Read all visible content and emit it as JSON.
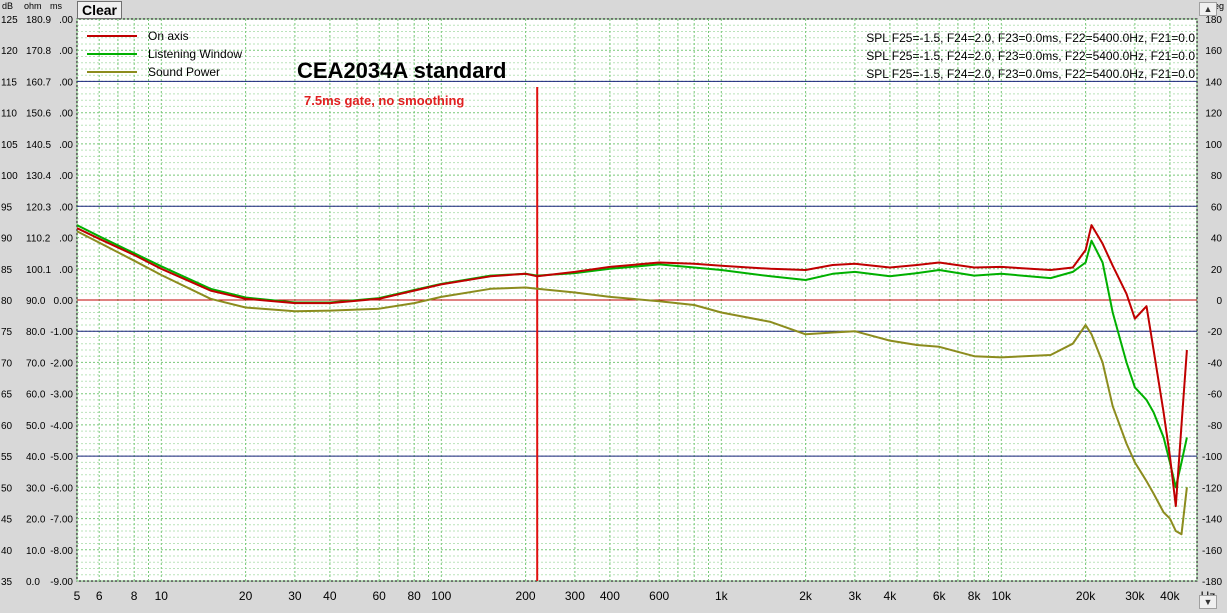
{
  "toolbar": {
    "clear_label": "Clear"
  },
  "chart_data": {
    "type": "line",
    "title": "CEA2034A standard",
    "subtitle": "7.5ms gate, no smoothing",
    "x_scale": "log",
    "xlim": [
      5,
      50000
    ],
    "xlabel": "Hz",
    "x_ticks": [
      5,
      6,
      8,
      10,
      20,
      30,
      40,
      60,
      80,
      100,
      200,
      300,
      400,
      600,
      1000,
      2000,
      3000,
      4000,
      6000,
      8000,
      10000,
      20000,
      30000,
      40000
    ],
    "x_tick_labels": [
      "5",
      "6",
      "8",
      "10",
      "20",
      "30",
      "40",
      "60",
      "80",
      "100",
      "200",
      "300",
      "400",
      "600",
      "1k",
      "2k",
      "3k",
      "4k",
      "6k",
      "8k",
      "10k",
      "20k",
      "30k",
      "40k"
    ],
    "y_axis_units": {
      "db": "dB",
      "ohm": "ohm",
      "ms": "ms",
      "deg": "deg"
    },
    "y_left_db": [
      125,
      120,
      115,
      110,
      105,
      100,
      95,
      90,
      85,
      80,
      75,
      70,
      65,
      60,
      55,
      50,
      45,
      40,
      35
    ],
    "y_left_ohm": [
      "180.9",
      "170.8",
      "160.7",
      "150.6",
      "140.5",
      "130.4",
      "120.3",
      "110.2",
      "100.1",
      "90.0",
      "80.0",
      "70.0",
      "60.0",
      "50.0",
      "40.0",
      "30.0",
      "20.0",
      "10.0",
      "0.0"
    ],
    "y_left_ms": [
      ".00",
      ".00",
      ".00",
      ".00",
      ".00",
      ".00",
      ".00",
      ".00",
      ".00",
      "0.00",
      "-1.00",
      "-2.00",
      "-3.00",
      "-4.00",
      "-5.00",
      "-6.00",
      "-7.00",
      "-8.00",
      "-9.00"
    ],
    "y_right_deg": [
      180,
      160,
      140,
      120,
      100,
      80,
      60,
      40,
      20,
      0,
      -20,
      -40,
      -60,
      -80,
      -100,
      -120,
      -140,
      -160,
      -180
    ],
    "ylim_db": [
      35,
      125
    ],
    "grid": true,
    "legend_position": "top-left",
    "colors": {
      "plot_bg": "#ffffff",
      "grid_fine": "#78c878",
      "grid_major": "#1a237e",
      "ref_line": "#c00000",
      "marker": "#e01010",
      "title_text": "#000000",
      "subtitle_text": "#e02020",
      "frame_bg": "#d8d8d8"
    },
    "reference_line_db": 80,
    "marker_x": 220,
    "series": [
      {
        "name": "On axis",
        "color": "#c00000",
        "info": "SPL  F25=-1.5, F24=2.0, F23=0.0ms, F22=5400.0Hz, F21=0.0",
        "x": [
          5,
          6,
          8,
          10,
          15,
          20,
          30,
          40,
          60,
          80,
          100,
          150,
          200,
          220,
          300,
          400,
          600,
          800,
          1000,
          1500,
          2000,
          2500,
          3000,
          4000,
          5000,
          6000,
          8000,
          10000,
          15000,
          18000,
          20000,
          21000,
          23000,
          25000,
          28000,
          30000,
          33000,
          35000,
          38000,
          40000,
          42000,
          44000,
          46000
        ],
        "y": [
          91.5,
          89.8,
          87.2,
          85.0,
          81.5,
          80.2,
          79.5,
          79.5,
          80.2,
          81.5,
          82.5,
          83.8,
          84.2,
          83.8,
          84.5,
          85.3,
          86.0,
          85.8,
          85.5,
          85.0,
          84.8,
          85.6,
          85.8,
          85.2,
          85.6,
          86.0,
          85.2,
          85.3,
          84.8,
          85.2,
          88.0,
          92.0,
          89.0,
          85.5,
          81.0,
          77.0,
          79.0,
          72.0,
          62.0,
          55.0,
          47.0,
          60.0,
          72.0
        ]
      },
      {
        "name": "Listening Window",
        "color": "#00b000",
        "info": "SPL  F25=-1.5, F24=2.0, F23=0.0ms, F22=5400.0Hz, F21=0.0",
        "x": [
          5,
          6,
          8,
          10,
          15,
          20,
          30,
          40,
          60,
          80,
          100,
          150,
          200,
          220,
          300,
          400,
          600,
          800,
          1000,
          1500,
          2000,
          2500,
          3000,
          4000,
          5000,
          6000,
          8000,
          10000,
          15000,
          18000,
          20000,
          21000,
          23000,
          25000,
          28000,
          30000,
          33000,
          35000,
          38000,
          40000,
          42000,
          44000,
          46000
        ],
        "y": [
          92.0,
          90.2,
          87.5,
          85.4,
          81.8,
          80.4,
          79.6,
          79.6,
          80.3,
          81.6,
          82.6,
          83.9,
          84.2,
          83.9,
          84.3,
          85.0,
          85.7,
          85.2,
          84.8,
          83.8,
          83.2,
          84.2,
          84.5,
          83.8,
          84.3,
          84.8,
          83.9,
          84.2,
          83.5,
          84.5,
          86.0,
          89.5,
          86.0,
          78.0,
          70.0,
          66.0,
          64.0,
          62.0,
          58.0,
          54.0,
          50.0,
          54.0,
          58.0
        ]
      },
      {
        "name": "Sound Power",
        "color": "#8c8c1e",
        "info": "SPL  F25=-1.5, F24=2.0, F23=0.0ms, F22=5400.0Hz, F21=0.0",
        "x": [
          5,
          6,
          8,
          10,
          15,
          20,
          30,
          40,
          60,
          80,
          100,
          150,
          200,
          220,
          300,
          400,
          600,
          800,
          1000,
          1500,
          2000,
          2500,
          3000,
          4000,
          5000,
          6000,
          8000,
          10000,
          15000,
          18000,
          20000,
          21000,
          23000,
          25000,
          28000,
          30000,
          33000,
          35000,
          38000,
          40000,
          42000,
          44000,
          46000
        ],
        "y": [
          91.0,
          89.2,
          86.3,
          84.0,
          80.2,
          78.8,
          78.2,
          78.3,
          78.6,
          79.5,
          80.5,
          81.8,
          82.0,
          81.8,
          81.2,
          80.5,
          79.8,
          79.2,
          78.0,
          76.5,
          74.5,
          74.8,
          75.0,
          73.5,
          72.8,
          72.5,
          71.0,
          70.8,
          71.2,
          73.0,
          76.0,
          74.5,
          70.0,
          63.0,
          57.0,
          54.0,
          51.0,
          49.0,
          46.0,
          45.0,
          43.0,
          42.5,
          50.0
        ]
      }
    ]
  }
}
